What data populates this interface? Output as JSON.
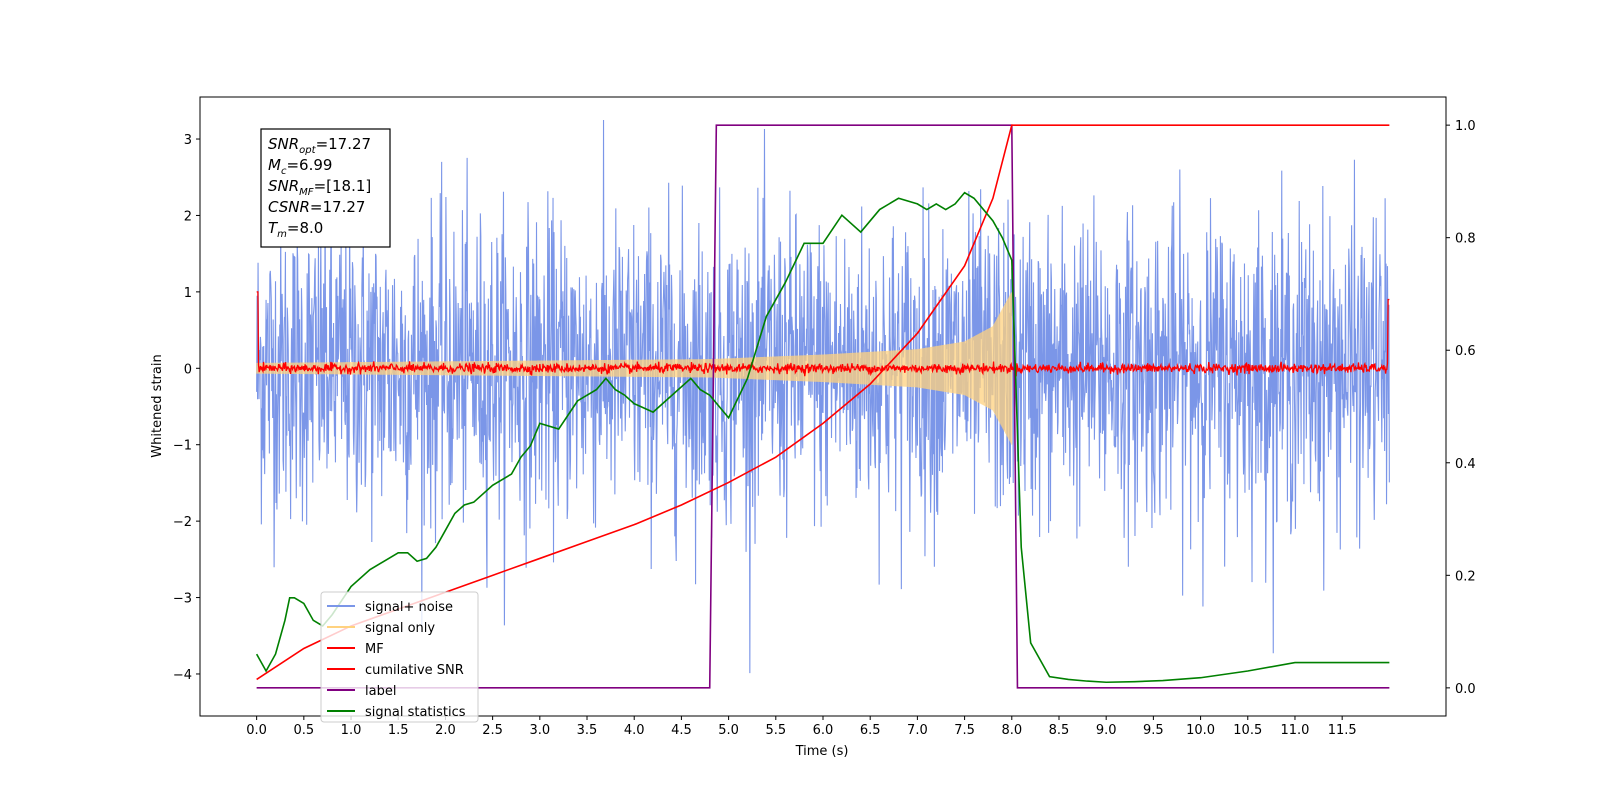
{
  "chart_data": {
    "type": "line",
    "xlabel": "Time (s)",
    "ylabel": "Whitened strain",
    "xlim": [
      -0.6,
      12.6
    ],
    "ylim": [
      -4.55,
      3.55
    ],
    "y2lim": [
      -0.05,
      1.05
    ],
    "x_ticks": [
      "0.0",
      "0.5",
      "1.0",
      "1.5",
      "2.0",
      "2.5",
      "3.0",
      "3.5",
      "4.0",
      "4.5",
      "5.0",
      "5.5",
      "6.0",
      "6.5",
      "7.0",
      "7.5",
      "8.0",
      "8.5",
      "9.0",
      "9.5",
      "10.0",
      "10.5",
      "11.0",
      "11.5"
    ],
    "y_ticks": [
      "−4",
      "−3",
      "−2",
      "−1",
      "0",
      "1",
      "2",
      "3"
    ],
    "y2_ticks": [
      "0.0",
      "0.2",
      "0.4",
      "0.6",
      "0.8",
      "1.0"
    ],
    "annotation": {
      "lines": [
        {
          "sym": "SNR",
          "sub": "opt",
          "val": "=17.27"
        },
        {
          "sym": "M",
          "sub": "c",
          "val": "=6.99"
        },
        {
          "sym": "SNR",
          "sub": "MF",
          "val": "=[18.1]"
        },
        {
          "sym": "CSNR",
          "sub": "",
          "val": "=17.27"
        },
        {
          "sym": "T",
          "sub": "m",
          "val": "=8.0"
        }
      ]
    },
    "series": [
      {
        "name": "signal+ noise",
        "color": "#7b96e8",
        "axis": "left",
        "style": "noise",
        "x_range": [
          0.0,
          12.0
        ],
        "amplitude": 1.6,
        "peak_min": -4.15,
        "peak_max": 3.35
      },
      {
        "name": "signal only",
        "color": "#ffd27f",
        "axis": "left",
        "style": "chirp",
        "x_range": [
          0.0,
          8.0
        ],
        "envelope": {
          "x": [
            0.0,
            4.8,
            6.0,
            7.0,
            7.5,
            7.8,
            8.0
          ],
          "y": [
            0.07,
            0.12,
            0.18,
            0.25,
            0.35,
            0.55,
            1.0
          ]
        }
      },
      {
        "name": "MF",
        "color": "#ff0000",
        "axis": "left",
        "style": "noise",
        "x_range": [
          0.0,
          12.0
        ],
        "amplitude": 0.05,
        "edge_spike": 1.0
      },
      {
        "name": "cumilative SNR",
        "color": "#ff0000",
        "axis": "right",
        "style": "line",
        "x": [
          0.0,
          0.5,
          1.0,
          1.5,
          2.0,
          2.5,
          3.0,
          3.5,
          4.0,
          4.5,
          5.0,
          5.5,
          6.0,
          6.5,
          7.0,
          7.5,
          7.8,
          8.0,
          12.0
        ],
        "y": [
          0.015,
          0.07,
          0.11,
          0.14,
          0.17,
          0.2,
          0.23,
          0.26,
          0.29,
          0.325,
          0.365,
          0.41,
          0.47,
          0.54,
          0.63,
          0.75,
          0.87,
          1.0,
          1.0
        ]
      },
      {
        "name": "label",
        "color": "#800080",
        "axis": "right",
        "style": "line",
        "x": [
          0.0,
          4.8,
          4.87,
          8.0,
          8.06,
          12.0
        ],
        "y": [
          0.0,
          0.0,
          1.0,
          1.0,
          0.0,
          0.0
        ]
      },
      {
        "name": "signal statistics",
        "color": "#008000",
        "axis": "right",
        "style": "line",
        "x": [
          0.0,
          0.1,
          0.2,
          0.3,
          0.35,
          0.4,
          0.5,
          0.6,
          0.7,
          0.8,
          1.0,
          1.2,
          1.4,
          1.5,
          1.6,
          1.7,
          1.8,
          1.9,
          2.0,
          2.1,
          2.2,
          2.3,
          2.5,
          2.7,
          2.8,
          2.9,
          3.0,
          3.2,
          3.4,
          3.6,
          3.7,
          3.8,
          3.9,
          4.0,
          4.2,
          4.4,
          4.6,
          4.7,
          4.8,
          5.0,
          5.2,
          5.4,
          5.6,
          5.8,
          6.0,
          6.2,
          6.4,
          6.6,
          6.8,
          7.0,
          7.1,
          7.2,
          7.3,
          7.4,
          7.5,
          7.6,
          7.7,
          7.8,
          7.9,
          8.0,
          8.1,
          8.2,
          8.4,
          8.6,
          8.8,
          9.0,
          9.3,
          9.6,
          10.0,
          10.5,
          11.0,
          11.5,
          12.0
        ],
        "y": [
          0.06,
          0.03,
          0.06,
          0.12,
          0.16,
          0.16,
          0.15,
          0.12,
          0.11,
          0.13,
          0.18,
          0.21,
          0.23,
          0.24,
          0.24,
          0.225,
          0.23,
          0.25,
          0.28,
          0.31,
          0.325,
          0.33,
          0.36,
          0.38,
          0.41,
          0.43,
          0.47,
          0.46,
          0.51,
          0.53,
          0.55,
          0.53,
          0.52,
          0.505,
          0.49,
          0.52,
          0.55,
          0.53,
          0.52,
          0.48,
          0.55,
          0.66,
          0.72,
          0.79,
          0.79,
          0.84,
          0.81,
          0.85,
          0.87,
          0.86,
          0.85,
          0.86,
          0.85,
          0.86,
          0.88,
          0.87,
          0.85,
          0.83,
          0.8,
          0.76,
          0.25,
          0.08,
          0.02,
          0.015,
          0.012,
          0.01,
          0.011,
          0.013,
          0.018,
          0.03,
          0.045,
          0.045,
          0.045
        ]
      }
    ],
    "legend_position": "lower left",
    "grid": false
  }
}
